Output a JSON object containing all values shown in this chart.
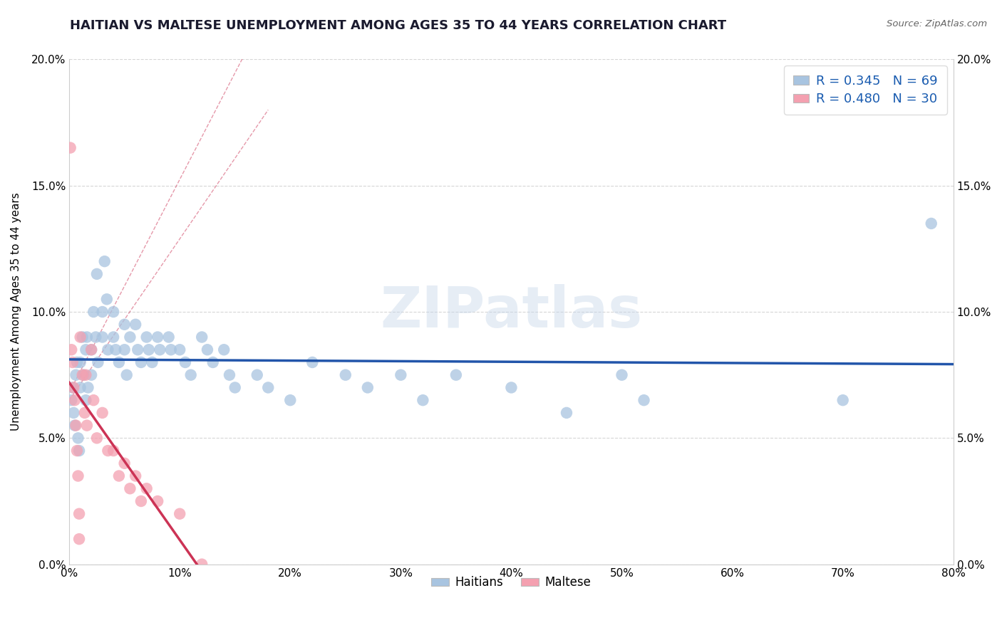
{
  "title": "HAITIAN VS MALTESE UNEMPLOYMENT AMONG AGES 35 TO 44 YEARS CORRELATION CHART",
  "source": "Source: ZipAtlas.com",
  "ylabel": "Unemployment Among Ages 35 to 44 years",
  "watermark": "ZIPatlas",
  "legend_r1": "R = 0.345",
  "legend_n1": "N = 69",
  "legend_r2": "R = 0.480",
  "legend_n2": "N = 30",
  "haitian_color": "#a8c4e0",
  "maltese_color": "#f4a0b0",
  "haitian_line_color": "#2255aa",
  "maltese_line_color": "#cc3355",
  "xlim": [
    0,
    0.8
  ],
  "ylim": [
    0,
    0.2
  ],
  "xticks": [
    0.0,
    0.1,
    0.2,
    0.3,
    0.4,
    0.5,
    0.6,
    0.7,
    0.8
  ],
  "yticks": [
    0.0,
    0.05,
    0.1,
    0.15,
    0.2
  ],
  "haitian_x": [
    0.002,
    0.003,
    0.004,
    0.005,
    0.006,
    0.007,
    0.008,
    0.009,
    0.01,
    0.01,
    0.012,
    0.013,
    0.015,
    0.015,
    0.016,
    0.017,
    0.02,
    0.02,
    0.022,
    0.024,
    0.025,
    0.026,
    0.03,
    0.03,
    0.032,
    0.034,
    0.035,
    0.04,
    0.04,
    0.042,
    0.045,
    0.05,
    0.05,
    0.052,
    0.055,
    0.06,
    0.062,
    0.065,
    0.07,
    0.072,
    0.075,
    0.08,
    0.082,
    0.09,
    0.092,
    0.1,
    0.105,
    0.11,
    0.12,
    0.125,
    0.13,
    0.14,
    0.145,
    0.15,
    0.17,
    0.18,
    0.2,
    0.22,
    0.25,
    0.27,
    0.3,
    0.32,
    0.35,
    0.4,
    0.45,
    0.5,
    0.52,
    0.7,
    0.78
  ],
  "haitian_y": [
    0.065,
    0.07,
    0.06,
    0.055,
    0.075,
    0.08,
    0.05,
    0.045,
    0.08,
    0.07,
    0.09,
    0.075,
    0.085,
    0.065,
    0.09,
    0.07,
    0.085,
    0.075,
    0.1,
    0.09,
    0.115,
    0.08,
    0.09,
    0.1,
    0.12,
    0.105,
    0.085,
    0.09,
    0.1,
    0.085,
    0.08,
    0.095,
    0.085,
    0.075,
    0.09,
    0.095,
    0.085,
    0.08,
    0.09,
    0.085,
    0.08,
    0.09,
    0.085,
    0.09,
    0.085,
    0.085,
    0.08,
    0.075,
    0.09,
    0.085,
    0.08,
    0.085,
    0.075,
    0.07,
    0.075,
    0.07,
    0.065,
    0.08,
    0.075,
    0.07,
    0.075,
    0.065,
    0.075,
    0.07,
    0.06,
    0.075,
    0.065,
    0.065,
    0.135
  ],
  "maltese_x": [
    0.001,
    0.002,
    0.003,
    0.004,
    0.005,
    0.006,
    0.007,
    0.008,
    0.009,
    0.009,
    0.01,
    0.012,
    0.014,
    0.015,
    0.016,
    0.02,
    0.022,
    0.025,
    0.03,
    0.035,
    0.04,
    0.045,
    0.05,
    0.055,
    0.06,
    0.065,
    0.07,
    0.08,
    0.1,
    0.12
  ],
  "maltese_y": [
    0.165,
    0.085,
    0.08,
    0.07,
    0.065,
    0.055,
    0.045,
    0.035,
    0.02,
    0.01,
    0.09,
    0.075,
    0.06,
    0.075,
    0.055,
    0.085,
    0.065,
    0.05,
    0.06,
    0.045,
    0.045,
    0.035,
    0.04,
    0.03,
    0.035,
    0.025,
    0.03,
    0.025,
    0.02,
    0.0
  ]
}
